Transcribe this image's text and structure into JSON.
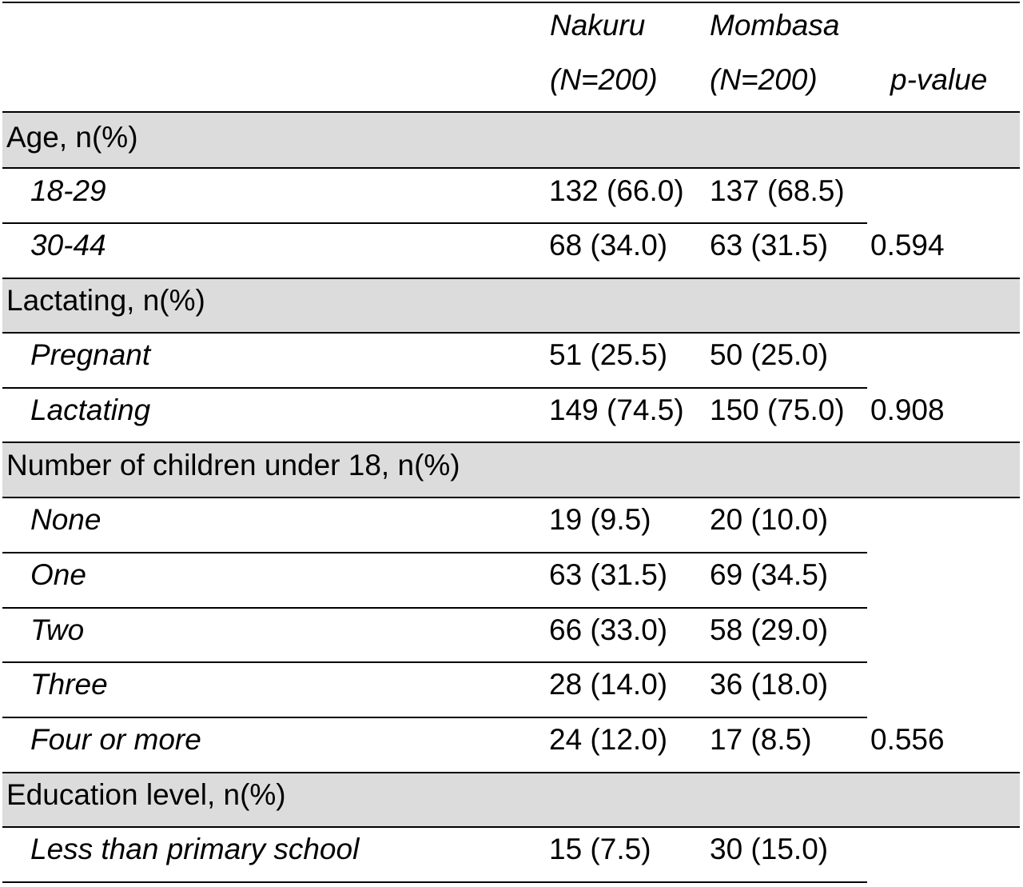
{
  "table": {
    "header": {
      "nakuru_line1": "Nakuru",
      "nakuru_line2": "(N=200)",
      "mombasa_line1": "Mombasa",
      "mombasa_line2": "(N=200)",
      "pvalue": "p-value"
    },
    "sections": [
      {
        "title": "Age, n(%)",
        "p_value": "0.594",
        "rows": [
          {
            "label": "18-29",
            "nakuru": "132 (66.0)",
            "mombasa": "137 (68.5)"
          },
          {
            "label": "30-44",
            "nakuru": "68 (34.0)",
            "mombasa": "63 (31.5)"
          }
        ]
      },
      {
        "title": "Lactating, n(%)",
        "p_value": "0.908",
        "rows": [
          {
            "label": "Pregnant",
            "nakuru": "51 (25.5)",
            "mombasa": "50 (25.0)"
          },
          {
            "label": "Lactating",
            "nakuru": "149 (74.5)",
            "mombasa": "150 (75.0)"
          }
        ]
      },
      {
        "title": "Number of children under 18, n(%)",
        "p_value": "0.556",
        "rows": [
          {
            "label": "None",
            "nakuru": "19 (9.5)",
            "mombasa": "20 (10.0)"
          },
          {
            "label": "One",
            "nakuru": "63 (31.5)",
            "mombasa": "69 (34.5)"
          },
          {
            "label": "Two",
            "nakuru": "66 (33.0)",
            "mombasa": "58 (29.0)"
          },
          {
            "label": "Three",
            "nakuru": "28 (14.0)",
            "mombasa": "36 (18.0)"
          },
          {
            "label": "Four or more",
            "nakuru": "24 (12.0)",
            "mombasa": "17 (8.5)"
          }
        ]
      },
      {
        "title": "Education level, n(%)",
        "rows": [
          {
            "label": "Less than primary school",
            "nakuru": "15 (7.5)",
            "mombasa": "30 (15.0)"
          }
        ]
      }
    ]
  }
}
